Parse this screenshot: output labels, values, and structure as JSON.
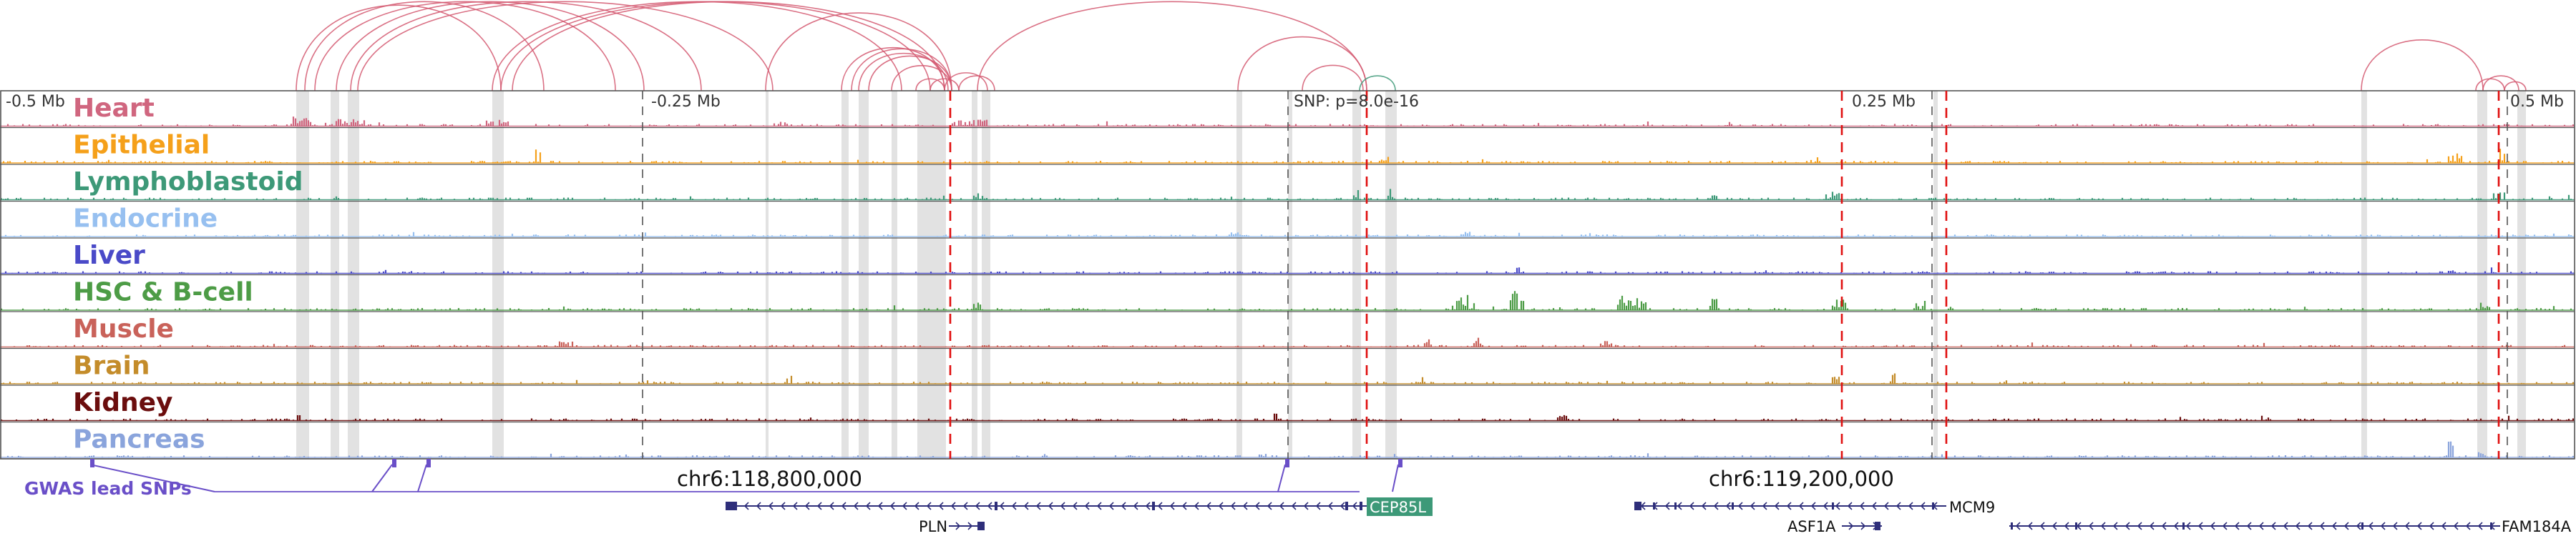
{
  "chart_data": {
    "type": "genome-browser",
    "scale_labels": {
      "left": "-0.5 Mb",
      "mid_left": "-0.25 Mb",
      "snp": "SNP: p=8.0e-16",
      "mid_right": "0.25 Mb",
      "right": "0.5 Mb"
    },
    "tracks": [
      {
        "name": "Heart",
        "color": "#d0667f"
      },
      {
        "name": "Epithelial",
        "color": "#f5a01a"
      },
      {
        "name": "Lymphoblastoid",
        "color": "#3d9978"
      },
      {
        "name": "Endocrine",
        "color": "#97c0f0"
      },
      {
        "name": "Liver",
        "color": "#4a4ac8"
      },
      {
        "name": "HSC & B-cell",
        "color": "#4d9c46"
      },
      {
        "name": "Muscle",
        "color": "#c9625a"
      },
      {
        "name": "Brain",
        "color": "#c48c2a"
      },
      {
        "name": "Kidney",
        "color": "#6b0d0d"
      },
      {
        "name": "Pancreas",
        "color": "#8aa4dc"
      }
    ],
    "gwas_label": "GWAS lead SNPs",
    "gwas_color": "#6a4fc8",
    "coordinates": [
      {
        "label": "chr6:118,800,000",
        "bp": 118800000
      },
      {
        "label": "chr6:119,200,000",
        "bp": 119200000
      }
    ],
    "genes": [
      {
        "name": "CEP85L",
        "highlight": true
      },
      {
        "name": "PLN",
        "highlight": false
      },
      {
        "name": "MCM9",
        "highlight": false
      },
      {
        "name": "ASF1A",
        "highlight": false
      },
      {
        "name": "FAM184A",
        "highlight": false
      }
    ],
    "colors": {
      "loop": "#d45870",
      "snp_line": "#e01010",
      "gene": "#2e2e7a",
      "gene_highlight": "#3d9978"
    }
  }
}
